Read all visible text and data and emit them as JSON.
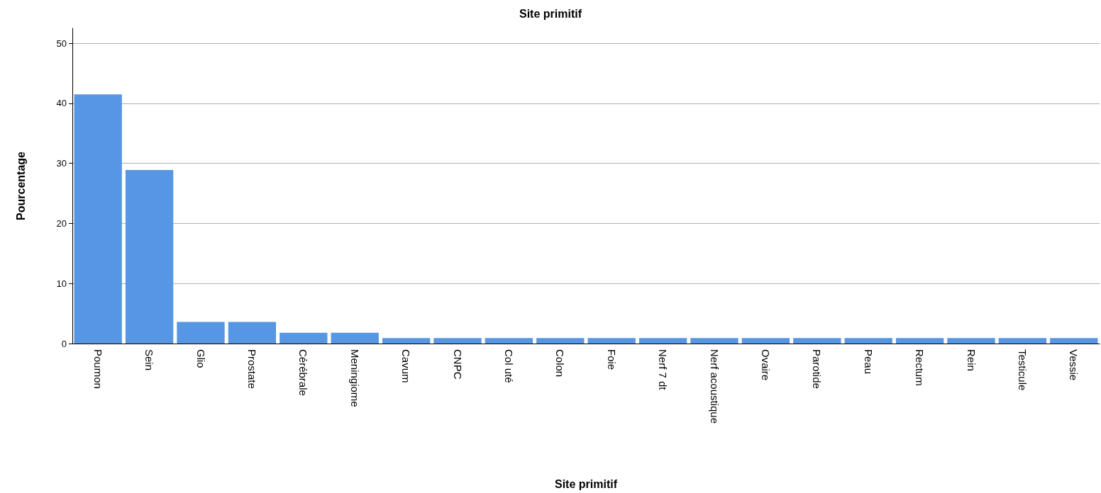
{
  "chart_data": {
    "type": "bar",
    "title": "Site primitif",
    "xlabel": "Site primitif",
    "ylabel": "Pourcentage",
    "categories": [
      "Poumon",
      "Sein",
      "Glio",
      "Prostate",
      "Cérébrale",
      "Meningiome",
      "Cavum",
      "CNPC",
      "Col uté",
      "Colon",
      "Foie",
      "Nerf 7 dt",
      "Nerf acoustique",
      "Ovaire",
      "Parotide",
      "Peau",
      "Rectum",
      "Rein",
      "Testicule",
      "Vessie"
    ],
    "values": [
      41.5,
      28.9,
      3.6,
      3.6,
      1.8,
      1.8,
      0.9,
      0.9,
      0.9,
      0.9,
      0.9,
      0.9,
      0.9,
      0.9,
      0.9,
      0.9,
      0.9,
      0.9,
      0.9,
      0.9
    ],
    "color": "#5796e2",
    "ylim": [
      0,
      52.5
    ],
    "yticks": [
      0,
      10,
      20,
      30,
      40,
      50
    ],
    "grid": "y"
  }
}
